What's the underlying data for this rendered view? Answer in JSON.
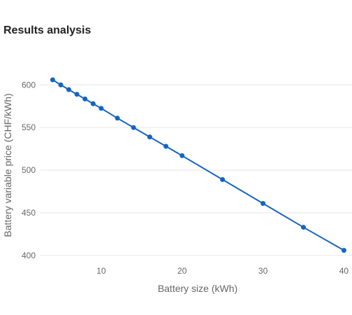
{
  "page": {
    "title": "Results analysis"
  },
  "chart_data": {
    "type": "line",
    "title": "",
    "xlabel": "Battery size (kWh)",
    "ylabel": "Battery variable price (CHF/kWh)",
    "xlim": [
      2.5,
      41
    ],
    "ylim": [
      395,
      615
    ],
    "x_ticks": [
      10,
      20,
      30,
      40
    ],
    "y_ticks": [
      400,
      450,
      500,
      550,
      600
    ],
    "grid": "horizontal",
    "legend": "none",
    "color": "#1565c0",
    "x": [
      4,
      5,
      6,
      7,
      8,
      9,
      10,
      12,
      14,
      16,
      18,
      20,
      25,
      30,
      35,
      40
    ],
    "y": [
      606,
      600,
      594.5,
      589,
      583.5,
      578,
      572.5,
      561,
      550,
      539,
      528,
      517,
      489,
      461,
      433,
      406
    ]
  }
}
